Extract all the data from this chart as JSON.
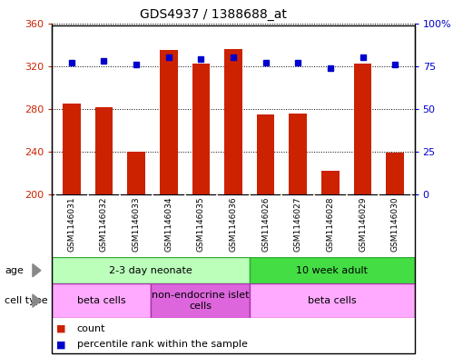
{
  "title": "GDS4937 / 1388688_at",
  "samples": [
    "GSM1146031",
    "GSM1146032",
    "GSM1146033",
    "GSM1146034",
    "GSM1146035",
    "GSM1146036",
    "GSM1146026",
    "GSM1146027",
    "GSM1146028",
    "GSM1146029",
    "GSM1146030"
  ],
  "counts": [
    285,
    282,
    240,
    335,
    322,
    336,
    275,
    276,
    222,
    322,
    239
  ],
  "percentiles": [
    77,
    78,
    76,
    80,
    79,
    80,
    77,
    77,
    74,
    80,
    76
  ],
  "ylim_left": [
    200,
    360
  ],
  "ylim_right": [
    0,
    100
  ],
  "yticks_left": [
    200,
    240,
    280,
    320,
    360
  ],
  "yticks_right": [
    0,
    25,
    50,
    75,
    100
  ],
  "ytick_labels_right": [
    "0",
    "25",
    "50",
    "75",
    "100%"
  ],
  "bar_color": "#cc2200",
  "dot_color": "#0000cc",
  "age_groups": [
    {
      "label": "2-3 day neonate",
      "start": 0,
      "end": 6,
      "color": "#bbffbb"
    },
    {
      "label": "10 week adult",
      "start": 6,
      "end": 11,
      "color": "#44dd44"
    }
  ],
  "cell_type_groups": [
    {
      "label": "beta cells",
      "start": 0,
      "end": 3,
      "color": "#ffaaff"
    },
    {
      "label": "non-endocrine islet\ncells",
      "start": 3,
      "end": 6,
      "color": "#dd66dd"
    },
    {
      "label": "beta cells",
      "start": 6,
      "end": 11,
      "color": "#ffaaff"
    }
  ],
  "legend_items": [
    {
      "color": "#cc2200",
      "label": "count"
    },
    {
      "color": "#0000cc",
      "label": "percentile rank within the sample"
    }
  ],
  "bar_width": 0.55,
  "tick_label_color_left": "#cc2200",
  "tick_label_color_right": "#0000cc",
  "background_color": "#ffffff",
  "plot_bg_color": "#ffffff",
  "grid_color": "#000000",
  "sample_label_bg": "#cccccc",
  "age_border_color": "#33aa33",
  "cell_border_color": "#aa33aa"
}
